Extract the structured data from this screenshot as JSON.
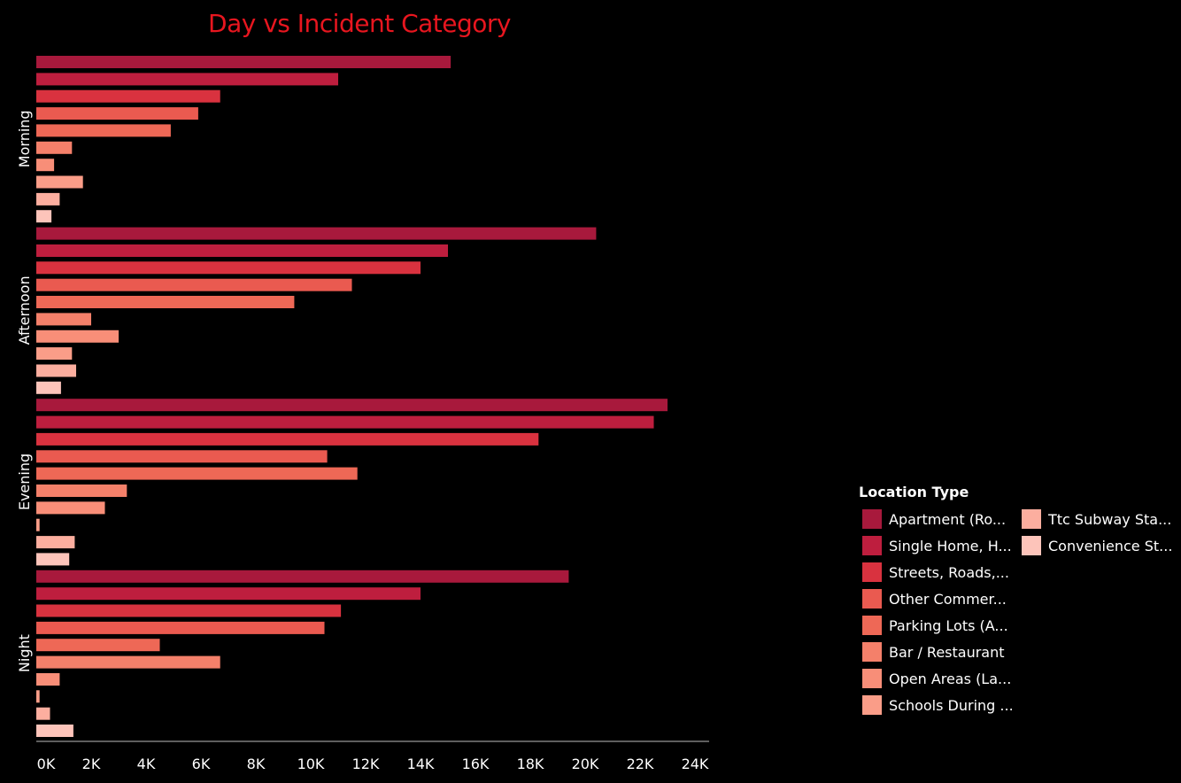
{
  "chart_data": {
    "type": "bar",
    "orientation": "horizontal",
    "title": "Day vs Incident Category",
    "xlabel": "",
    "ylabel": "",
    "xlim": [
      0,
      24000
    ],
    "x_ticks": [
      "0K",
      "2K",
      "4K",
      "6K",
      "8K",
      "10K",
      "12K",
      "14K",
      "16K",
      "18K",
      "20K",
      "22K",
      "24K"
    ],
    "grid": false,
    "legend_position": "right",
    "legend_title": "Location Type",
    "groups": [
      "Morning",
      "Afternoon",
      "Evening",
      "Night"
    ],
    "series": [
      {
        "name": "Apartment (Ro...",
        "color": "#a8193c",
        "values": [
          15100,
          20400,
          23000,
          19400
        ]
      },
      {
        "name": "Single Home, H...",
        "color": "#be1e3e",
        "values": [
          11000,
          15000,
          22500,
          14000
        ]
      },
      {
        "name": "Streets, Roads,...",
        "color": "#d9323f",
        "values": [
          6700,
          14000,
          18300,
          11100
        ]
      },
      {
        "name": "Other Commer...",
        "color": "#ea5a50",
        "values": [
          5900,
          11500,
          10600,
          10500
        ]
      },
      {
        "name": "Parking Lots (A...",
        "color": "#ee6856",
        "values": [
          4900,
          9400,
          11700,
          4500
        ]
      },
      {
        "name": "Bar / Restaurant",
        "color": "#f4806a",
        "values": [
          1300,
          2000,
          3300,
          6700
        ]
      },
      {
        "name": "Open Areas (La...",
        "color": "#f88e78",
        "values": [
          650,
          3000,
          2500,
          850
        ]
      },
      {
        "name": "Schools During ...",
        "color": "#fa9d88",
        "values": [
          1700,
          1300,
          120,
          120
        ]
      },
      {
        "name": "Ttc Subway Sta...",
        "color": "#fcae9f",
        "values": [
          850,
          1450,
          1400,
          500
        ]
      },
      {
        "name": "Convenience St...",
        "color": "#fdc4ba",
        "values": [
          550,
          900,
          1200,
          1350
        ]
      }
    ]
  }
}
